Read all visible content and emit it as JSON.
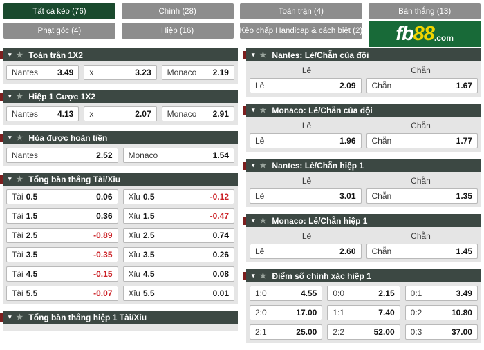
{
  "colors": {
    "selected_tab_green": "#1a4a2e",
    "tab_gray": "#8d8d8d",
    "section_header_bg": "#3c4843",
    "section_body_gray": "#e5e5e5",
    "logo_green": "#186a38",
    "logo_yellow": "#f0d400",
    "negative_value_red": "#cc2328"
  },
  "icons": {
    "collapse_caret": "▾",
    "star": "★"
  },
  "tabs": [
    {
      "label": "Tất cả kèo (76)",
      "selected": true
    },
    {
      "label": "Chính (28)",
      "selected": false
    },
    {
      "label": "Toàn trận (4)",
      "selected": false
    },
    {
      "label": "Bàn thắng (13)",
      "selected": false
    },
    {
      "label": "Phạt góc (4)",
      "selected": false
    },
    {
      "label": "Hiệp (16)",
      "selected": false
    },
    {
      "label": "Kèo chấp Handicap & cách biệt (2)",
      "selected": false
    }
  ],
  "logo": {
    "fb": "fb",
    "num": "88",
    "dotcom": ".com"
  },
  "left_sections": [
    {
      "title": "Toàn trận 1X2",
      "rows": [
        [
          {
            "label": "Nantes",
            "value": "3.49"
          },
          {
            "label": "x",
            "value": "3.23"
          },
          {
            "label": "Monaco",
            "value": "2.19"
          }
        ]
      ]
    },
    {
      "title": "Hiệp 1 Cược 1X2",
      "rows": [
        [
          {
            "label": "Nantes",
            "value": "4.13"
          },
          {
            "label": "x",
            "value": "2.07"
          },
          {
            "label": "Monaco",
            "value": "2.91"
          }
        ]
      ]
    },
    {
      "title": "Hòa được hoàn tiền",
      "rows": [
        [
          {
            "label": "Nantes",
            "value": "2.52"
          },
          {
            "label": "Monaco",
            "value": "1.54"
          }
        ]
      ]
    },
    {
      "title": "Tổng bàn thắng Tài/Xỉu",
      "rows": [
        [
          {
            "label": "Tài",
            "line": "0.5",
            "value": "0.06"
          },
          {
            "label": "Xỉu",
            "line": "0.5",
            "value": "-0.12"
          }
        ],
        [
          {
            "label": "Tài",
            "line": "1.5",
            "value": "0.36"
          },
          {
            "label": "Xỉu",
            "line": "1.5",
            "value": "-0.47"
          }
        ],
        [
          {
            "label": "Tài",
            "line": "2.5",
            "value": "-0.89"
          },
          {
            "label": "Xỉu",
            "line": "2.5",
            "value": "0.74"
          }
        ],
        [
          {
            "label": "Tài",
            "line": "3.5",
            "value": "-0.35"
          },
          {
            "label": "Xỉu",
            "line": "3.5",
            "value": "0.26"
          }
        ],
        [
          {
            "label": "Tài",
            "line": "4.5",
            "value": "-0.15"
          },
          {
            "label": "Xỉu",
            "line": "4.5",
            "value": "0.08"
          }
        ],
        [
          {
            "label": "Tài",
            "line": "5.5",
            "value": "-0.07"
          },
          {
            "label": "Xỉu",
            "line": "5.5",
            "value": "0.01"
          }
        ]
      ]
    },
    {
      "title": "Tổng bàn thắng hiệp 1 Tài/Xỉu",
      "rows": []
    }
  ],
  "right_sections": [
    {
      "title": "Nantes: Lẻ/Chẵn của đội",
      "col_labels": [
        "Lẻ",
        "Chẵn"
      ],
      "cells": [
        {
          "label": "Lẻ",
          "value": "2.09"
        },
        {
          "label": "Chẵn",
          "value": "1.67"
        }
      ]
    },
    {
      "title": "Monaco: Lẻ/Chẵn của đội",
      "col_labels": [
        "Lẻ",
        "Chẵn"
      ],
      "cells": [
        {
          "label": "Lẻ",
          "value": "1.96"
        },
        {
          "label": "Chẵn",
          "value": "1.77"
        }
      ]
    },
    {
      "title": "Nantes: Lẻ/Chẵn hiệp 1",
      "col_labels": [
        "Lẻ",
        "Chẵn"
      ],
      "cells": [
        {
          "label": "Lẻ",
          "value": "3.01"
        },
        {
          "label": "Chẵn",
          "value": "1.35"
        }
      ]
    },
    {
      "title": "Monaco: Lẻ/Chẵn hiệp 1",
      "col_labels": [
        "Lẻ",
        "Chẵn"
      ],
      "cells": [
        {
          "label": "Lẻ",
          "value": "2.60"
        },
        {
          "label": "Chẵn",
          "value": "1.45"
        }
      ]
    },
    {
      "title": "Điểm số chính xác hiệp 1",
      "score_rows": [
        [
          {
            "label": "1:0",
            "value": "4.55"
          },
          {
            "label": "0:0",
            "value": "2.15"
          },
          {
            "label": "0:1",
            "value": "3.49"
          }
        ],
        [
          {
            "label": "2:0",
            "value": "17.00"
          },
          {
            "label": "1:1",
            "value": "7.40"
          },
          {
            "label": "0:2",
            "value": "10.80"
          }
        ],
        [
          {
            "label": "2:1",
            "value": "25.00"
          },
          {
            "label": "2:2",
            "value": "52.00"
          },
          {
            "label": "0:3",
            "value": "37.00"
          }
        ]
      ]
    }
  ]
}
